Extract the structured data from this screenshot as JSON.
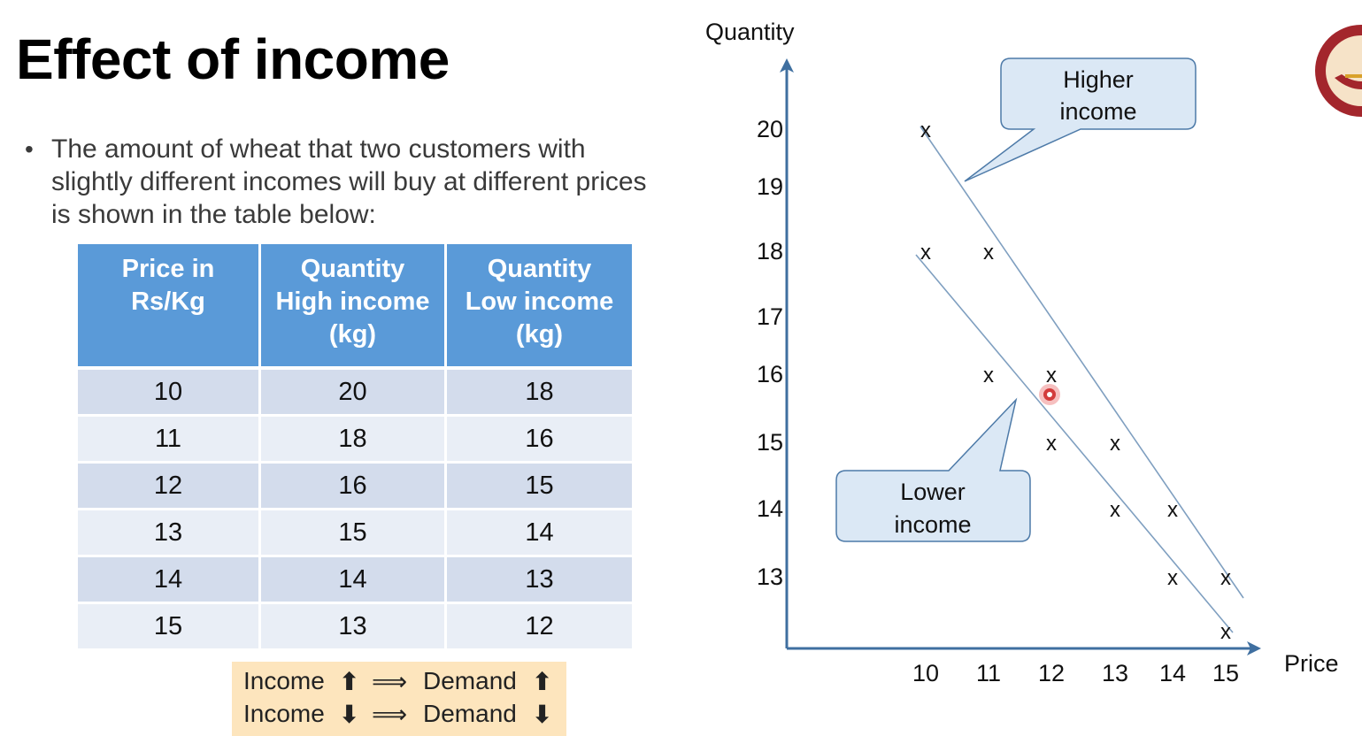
{
  "slide": {
    "title": "Effect of income",
    "bullet": "The amount of wheat that two customers with slightly different incomes will buy at different prices is shown in the table below:"
  },
  "table": {
    "headers": [
      [
        "Price in",
        "Rs/Kg"
      ],
      [
        "Quantity",
        "High income",
        "(kg)"
      ],
      [
        "Quantity",
        "Low income",
        "(kg)"
      ]
    ],
    "rows": [
      [
        "10",
        "20",
        "18"
      ],
      [
        "11",
        "18",
        "16"
      ],
      [
        "12",
        "16",
        "15"
      ],
      [
        "13",
        "15",
        "14"
      ],
      [
        "14",
        "14",
        "13"
      ],
      [
        "15",
        "13",
        "12"
      ]
    ]
  },
  "summary": {
    "line1": {
      "left": "Income",
      "left_arrow": "⬆",
      "implies": "⟹",
      "right": "Demand",
      "right_arrow": "⬆"
    },
    "line2": {
      "left": "Income",
      "left_arrow": "⬇",
      "implies": "⟹",
      "right": "Demand",
      "right_arrow": "⬇"
    }
  },
  "chart_data": {
    "type": "scatter",
    "xlabel": "Price",
    "ylabel": "Quantity",
    "x_ticks": [
      "10",
      "11",
      "12",
      "13",
      "14",
      "15"
    ],
    "y_ticks": [
      "13",
      "14",
      "15",
      "16",
      "17",
      "18",
      "19",
      "20"
    ],
    "marker": "x",
    "series": [
      {
        "name": "Higher income",
        "x": [
          10,
          11,
          12,
          13,
          14,
          15
        ],
        "y": [
          20,
          18,
          16,
          15,
          14,
          13
        ]
      },
      {
        "name": "Lower income",
        "x": [
          10,
          11,
          12,
          13,
          14,
          15
        ],
        "y": [
          18,
          16,
          15,
          14,
          13,
          12
        ]
      }
    ],
    "callouts": [
      "Higher income",
      "Lower income"
    ]
  },
  "colors": {
    "header_blue": "#5a9ad8",
    "row_dark": "#d3dcec",
    "row_light": "#e9eef6",
    "axis": "#3f6fa0",
    "callout_fill": "#dbe8f5",
    "summary_fill": "#fde5bd",
    "cursor": "#d33b3b"
  },
  "icons": {
    "cursor": "pointer-cursor-icon",
    "logo": "institute-seal-logo"
  }
}
